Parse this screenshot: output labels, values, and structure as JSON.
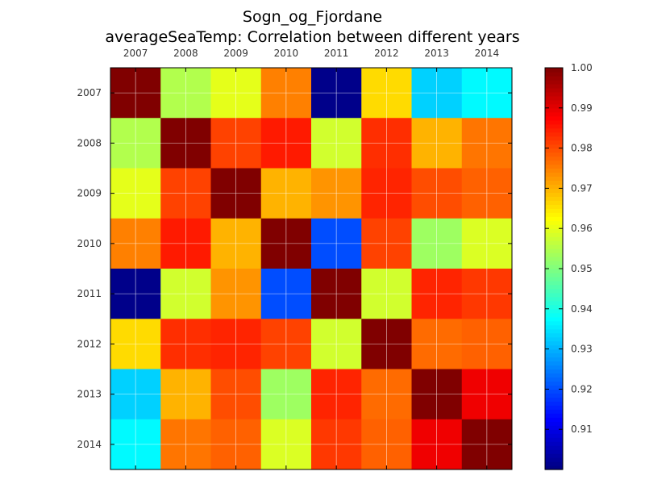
{
  "chart_data": {
    "type": "heatmap",
    "title": "Sogn_og_Fjordane",
    "subtitle": "averageSeaTemp: Correlation between different years",
    "x_categories": [
      "2007",
      "2008",
      "2009",
      "2010",
      "2011",
      "2012",
      "2013",
      "2014"
    ],
    "y_categories": [
      "2007",
      "2008",
      "2009",
      "2010",
      "2011",
      "2012",
      "2013",
      "2014"
    ],
    "values": [
      [
        1.0,
        0.955,
        0.96,
        0.975,
        0.901,
        0.966,
        0.933,
        0.937
      ],
      [
        0.955,
        1.0,
        0.981,
        0.985,
        0.958,
        0.983,
        0.97,
        0.976
      ],
      [
        0.96,
        0.981,
        1.0,
        0.97,
        0.973,
        0.984,
        0.98,
        0.978
      ],
      [
        0.975,
        0.985,
        0.97,
        1.0,
        0.92,
        0.981,
        0.953,
        0.959
      ],
      [
        0.901,
        0.958,
        0.973,
        0.92,
        1.0,
        0.958,
        0.984,
        0.982
      ],
      [
        0.966,
        0.983,
        0.984,
        0.981,
        0.958,
        1.0,
        0.977,
        0.978
      ],
      [
        0.933,
        0.97,
        0.98,
        0.953,
        0.984,
        0.977,
        1.0,
        0.989
      ],
      [
        0.937,
        0.976,
        0.978,
        0.959,
        0.982,
        0.978,
        0.989,
        1.0
      ]
    ],
    "colormap": "jet",
    "vmin": 0.9,
    "vmax": 1.0,
    "colorbar_ticks": [
      "0.91",
      "0.92",
      "0.93",
      "0.94",
      "0.95",
      "0.96",
      "0.97",
      "0.98",
      "0.99",
      "1.00"
    ],
    "grid": true,
    "xticks_position": "top"
  }
}
